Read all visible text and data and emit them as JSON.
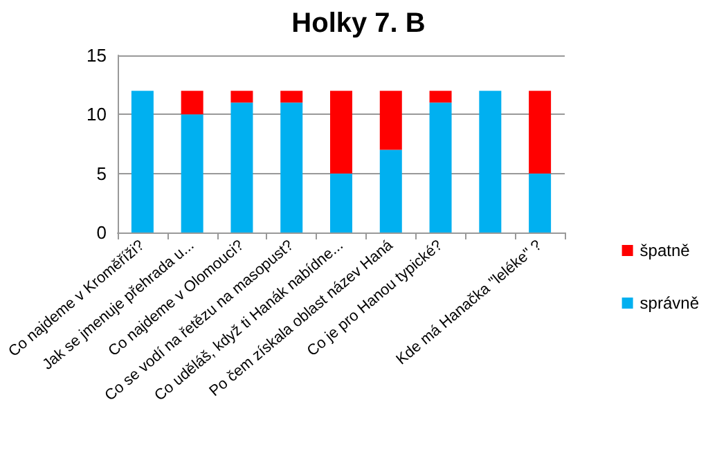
{
  "chart_data": {
    "type": "bar",
    "title": "Holky 7. B",
    "stacked": true,
    "categories": [
      "Co najdeme v Kroměříži?",
      "Jak se jmenuje přehrada u...",
      "Co najdeme v Olomouci?",
      "Co se vodí na řetězu na masopust?",
      "Co uděláš, když ti Hanák nabídne...",
      "Po čem získala oblast název Haná",
      "Co je pro Hanou typické?",
      null,
      "Kde má Hanačka \"leléke\" ?"
    ],
    "series": [
      {
        "name": "správně",
        "color": "#00b0f0",
        "values": [
          12,
          10,
          11,
          11,
          5,
          7,
          11,
          12,
          5
        ]
      },
      {
        "name": "špatně",
        "color": "#ff0000",
        "values": [
          0,
          2,
          1,
          1,
          7,
          5,
          1,
          0,
          7
        ]
      }
    ],
    "ylim": [
      0,
      15
    ],
    "yticks": [
      0,
      5,
      10,
      15
    ],
    "grid": "y",
    "legend": "right"
  }
}
